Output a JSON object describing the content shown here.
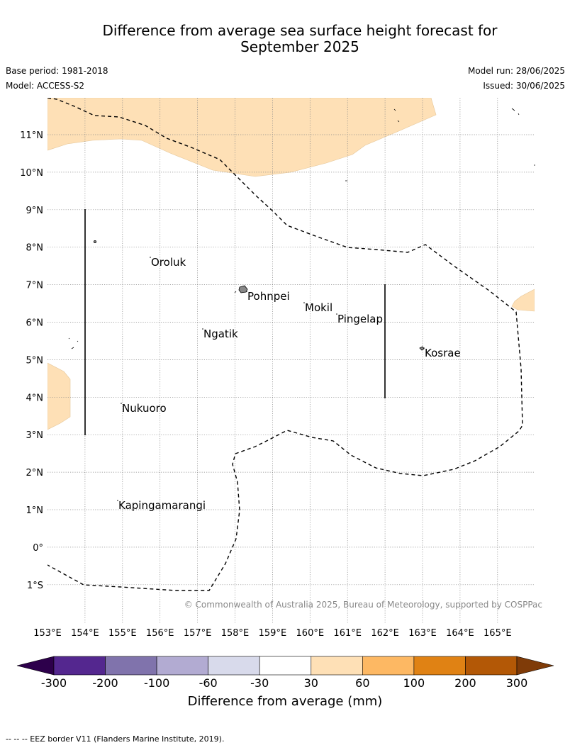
{
  "title_line1": "Difference from average sea surface height forecast for",
  "title_line2": "September 2025",
  "base_period": "Base period: 1981-2018",
  "model": "Model: ACCESS-S2",
  "model_run": "Model run: 28/06/2025",
  "issued": "Issued: 30/06/2025",
  "lat_labels": [
    "11°N",
    "10°N",
    "9°N",
    "8°N",
    "7°N",
    "6°N",
    "5°N",
    "4°N",
    "3°N",
    "2°N",
    "1°N",
    "0°",
    "1°S"
  ],
  "lon_labels": [
    "153°E",
    "154°E",
    "155°E",
    "156°E",
    "157°E",
    "158°E",
    "159°E",
    "160°E",
    "161°E",
    "162°E",
    "163°E",
    "164°E",
    "165°E"
  ],
  "places": [
    "Oroluk",
    "Pohnpei",
    "Mokil",
    "Pingelap",
    "Ngatik",
    "Kosrae",
    "Nukuoro",
    "Kapingamarangi"
  ],
  "copyright": "© Commonwealth of Australia 2025, Bureau of Meteorology, supported by COSPPac",
  "colorbar": {
    "ticks": [
      "-300",
      "-200",
      "-100",
      "-60",
      "-30",
      "30",
      "60",
      "100",
      "200",
      "300"
    ],
    "colors": [
      "#54278f",
      "#8073ac",
      "#b2abd2",
      "#d8daeb",
      "#ffffff",
      "#fee0b6",
      "#fdb863",
      "#e08214",
      "#b35806"
    ],
    "under_color": "#2d004b",
    "over_color": "#7f3b08",
    "label": "Difference from average (mm)"
  },
  "footer": "--  --  -- EEZ border V11 (Flanders Marine Institute, 2019)."
}
